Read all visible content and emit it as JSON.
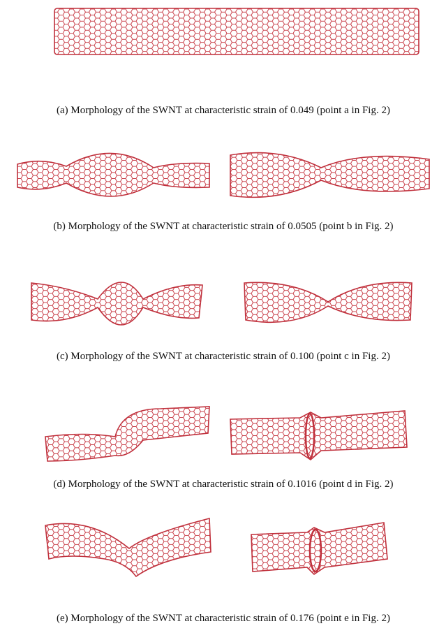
{
  "captions": [
    "(a) Morphology of the SWNT at characteristic strain of 0.049 (point a in Fig. 2)",
    "(b) Morphology of the SWNT at characteristic strain of 0.0505 (point b in Fig. 2)",
    "(c) Morphology of the SWNT at characteristic strain of 0.100 (point c in Fig. 2)",
    "(d) Morphology of the SWNT at characteristic strain of 0.1016 (point d in Fig. 2)",
    "(e) Morphology of the SWNT at characteristic strain of 0.176 (point e in Fig. 2)"
  ]
}
